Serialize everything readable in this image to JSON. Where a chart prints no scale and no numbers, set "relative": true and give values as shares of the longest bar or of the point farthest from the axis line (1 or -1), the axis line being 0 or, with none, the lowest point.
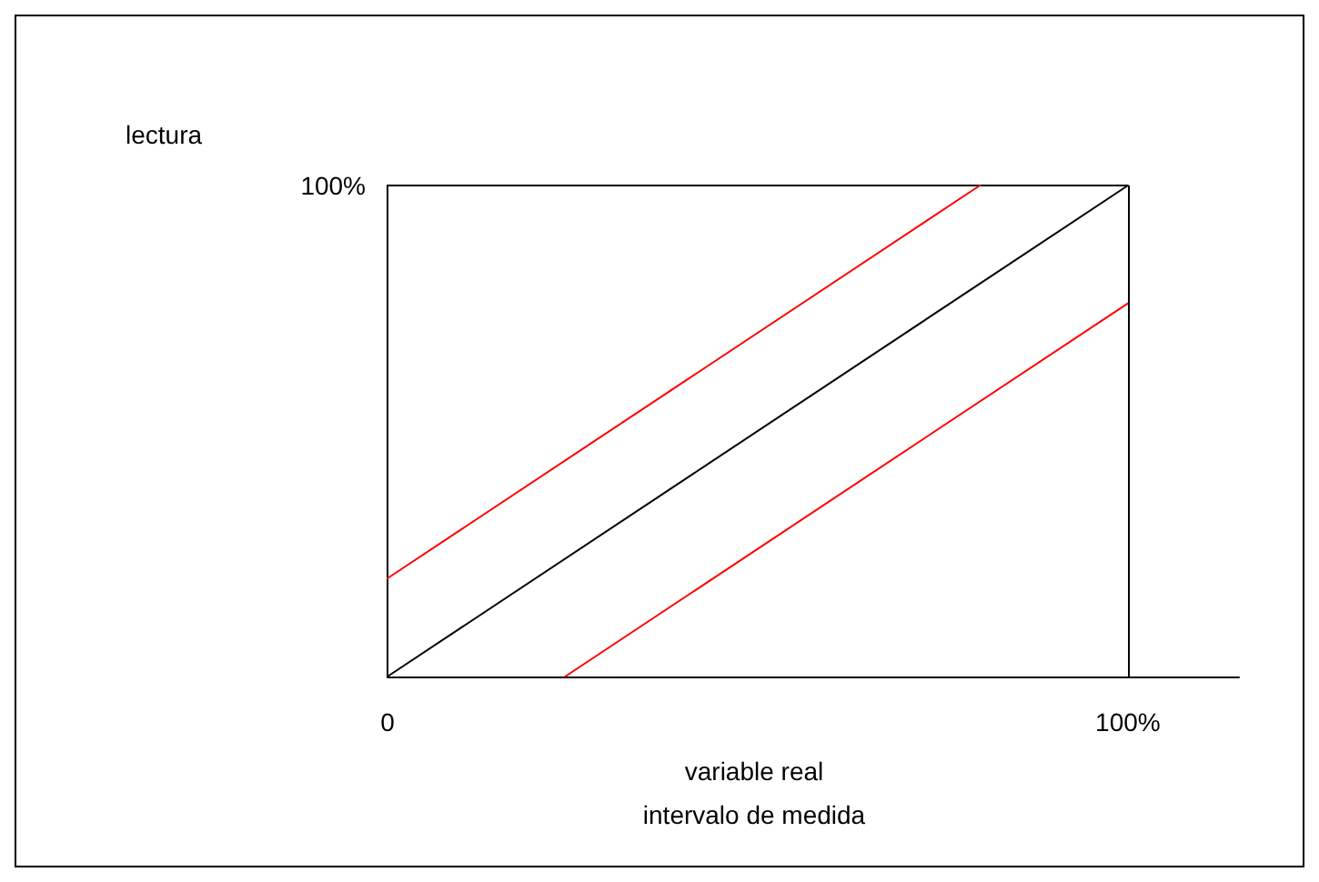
{
  "chart_data": {
    "type": "line",
    "xlabel": "variable real\nintervalo de medida",
    "relative": true,
    "annotations": [
      "100%",
      "lectura"
    ],
    "xlim": [
      0,
      115
    ],
    "xticks": [
      0,
      {
        "value": 100,
        "label": "100%"
      }
    ],
    "series": [
      {
        "color": "#ff0000",
        "x": [
          0,
          80
        ],
        "values": [
          0.2,
          1
        ]
      },
      {
        "color": "#000000",
        "x": [
          0,
          100
        ],
        "values": [
          0,
          1
        ]
      },
      {
        "color": "#ff0000",
        "x": [
          24,
          100
        ],
        "values": [
          0,
          0.76
        ]
      }
    ],
    "ref_lines": [
      {
        "axis": "x",
        "value": 100,
        "color": "#000000"
      }
    ],
    "marker": "none",
    "line_style": "solid"
  }
}
